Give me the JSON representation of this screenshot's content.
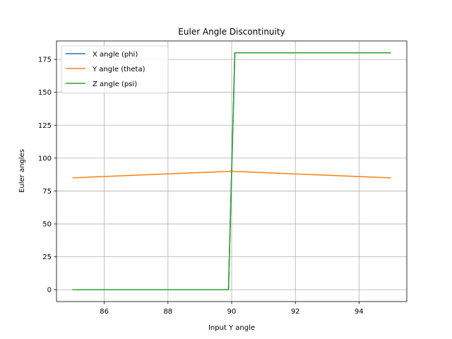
{
  "chart_data": {
    "type": "line",
    "title": "Euler Angle Discontinuity",
    "xlabel": "Input Y angle",
    "ylabel": "Euler angles",
    "xlim": [
      84.5,
      95.5
    ],
    "ylim": [
      -9,
      189
    ],
    "xticks": [
      86,
      88,
      90,
      92,
      94
    ],
    "yticks": [
      0,
      25,
      50,
      75,
      100,
      125,
      150,
      175
    ],
    "grid": true,
    "legend_position": "top-left",
    "series": [
      {
        "name": "X angle (phi)",
        "color": "#1f77b4",
        "x": [
          85,
          89.9,
          90.1,
          95
        ],
        "y": [
          0,
          0,
          180,
          180
        ]
      },
      {
        "name": "Y angle (theta)",
        "color": "#ff7f0e",
        "x": [
          85,
          90,
          95
        ],
        "y": [
          85,
          90,
          85
        ]
      },
      {
        "name": "Z angle (psi)",
        "color": "#2ca02c",
        "x": [
          85,
          89.9,
          90.1,
          95
        ],
        "y": [
          0,
          0,
          180,
          180
        ]
      }
    ]
  }
}
